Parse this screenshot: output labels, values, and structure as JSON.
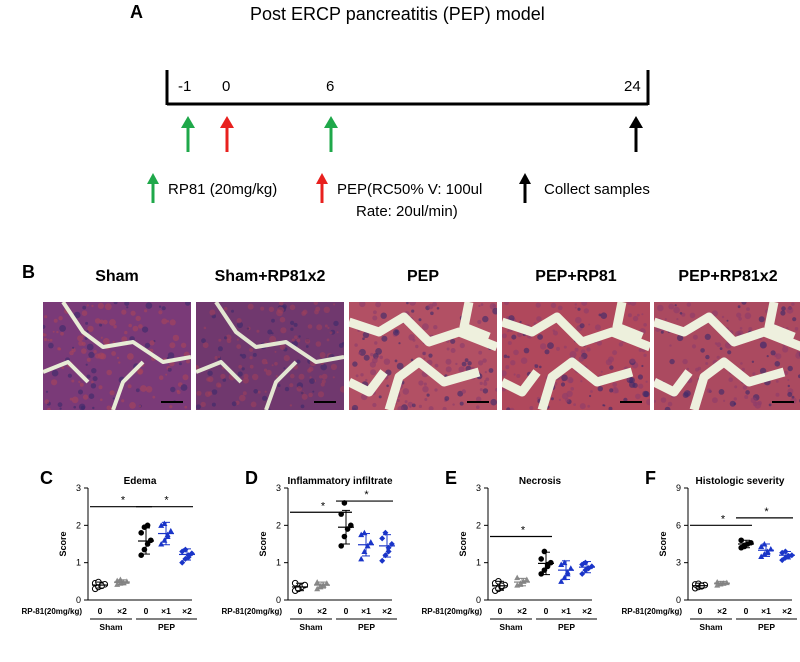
{
  "panel_a": {
    "letter": "A",
    "title": "Post ERCP pancreatitis (PEP) model",
    "ticks": [
      "-1",
      "0",
      "6",
      "24"
    ],
    "legend": {
      "rp81": "RP81 (20mg/kg)",
      "pep_line1": "PEP(RC50% V: 100ul",
      "pep_line2": "Rate: 20ul/min)",
      "collect": "Collect samples"
    },
    "colors": {
      "green": "#1fa84a",
      "red": "#e8201e",
      "black": "#000000"
    }
  },
  "panel_b": {
    "letter": "B",
    "images": [
      {
        "label": "Sham",
        "bg": "#7a3a78",
        "tint": "#a8445a",
        "space": "#e8ecd6"
      },
      {
        "label": "Sham+RP81x2",
        "bg": "#70386e",
        "tint": "#9c3f5c",
        "space": "#e3e6d2"
      },
      {
        "label": "PEP",
        "bg": "#b25064",
        "tint": "#8a3c6c",
        "space": "#eef0dd"
      },
      {
        "label": "PEP+RP81",
        "bg": "#b0485c",
        "tint": "#8e3d6a",
        "space": "#edf0dc"
      },
      {
        "label": "PEP+RP81x2",
        "bg": "#ab4a60",
        "tint": "#8d3c6a",
        "space": "#eef0de"
      }
    ]
  },
  "charts": [
    {
      "letter": "C",
      "title": "Edema",
      "ylabel": "Score",
      "yticks": [
        "0",
        "1",
        "2",
        "3"
      ],
      "ylim": [
        0,
        3
      ],
      "xlabel_left": "RP-81(20mg/kg)",
      "groups": [
        "Sham",
        "PEP"
      ],
      "x_labels": [
        "0",
        "×2",
        "0",
        "×1",
        "×2"
      ],
      "sig": "*",
      "chart_data": {
        "type": "scatter",
        "categories": [
          "Sham 0",
          "Sham ×2",
          "PEP 0",
          "PEP ×1",
          "PEP ×2"
        ],
        "means": [
          0.4,
          0.48,
          1.58,
          1.78,
          1.22
        ],
        "sd": [
          0.08,
          0.06,
          0.35,
          0.3,
          0.15
        ],
        "points": [
          [
            0.3,
            0.35,
            0.4,
            0.42,
            0.45,
            0.48,
            0.38
          ],
          [
            0.42,
            0.45,
            0.48,
            0.5,
            0.52,
            0.55,
            0.46
          ],
          [
            1.2,
            1.35,
            1.5,
            1.6,
            1.8,
            1.95,
            2.0
          ],
          [
            1.5,
            1.6,
            1.75,
            1.85,
            2.0,
            2.05,
            1.7
          ],
          [
            1.0,
            1.1,
            1.2,
            1.25,
            1.3,
            1.35,
            1.15
          ]
        ],
        "brackets": [
          {
            "from": 0,
            "to": 2,
            "level": 2.5,
            "label": "*"
          },
          {
            "from": 2,
            "to": 4,
            "level": 2.5,
            "label": "*"
          }
        ]
      }
    },
    {
      "letter": "D",
      "title": "Inflammatory infiltrate",
      "ylabel": "Score",
      "yticks": [
        "0",
        "1",
        "2",
        "3"
      ],
      "ylim": [
        0,
        3
      ],
      "xlabel_left": "RP-81(20mg/kg)",
      "groups": [
        "Sham",
        "PEP"
      ],
      "x_labels": [
        "0",
        "×2",
        "0",
        "×1",
        "×2"
      ],
      "sig": "*",
      "chart_data": {
        "type": "scatter",
        "categories": [
          "Sham 0",
          "Sham ×2",
          "PEP 0",
          "PEP ×1",
          "PEP ×2"
        ],
        "means": [
          0.35,
          0.4,
          1.95,
          1.48,
          1.45
        ],
        "sd": [
          0.1,
          0.08,
          0.45,
          0.3,
          0.3
        ],
        "points": [
          [
            0.25,
            0.3,
            0.35,
            0.4,
            0.45,
            0.3
          ],
          [
            0.3,
            0.35,
            0.4,
            0.45,
            0.48,
            0.38
          ],
          [
            1.45,
            1.7,
            1.9,
            2.0,
            2.3,
            2.6
          ],
          [
            1.1,
            1.3,
            1.45,
            1.55,
            1.75,
            1.8
          ],
          [
            1.05,
            1.2,
            1.4,
            1.5,
            1.65,
            1.8,
            1.3
          ]
        ],
        "brackets": [
          {
            "from": 0,
            "to": 2,
            "level": 2.35,
            "label": "*"
          },
          {
            "from": 2,
            "to": 4,
            "level": 2.65,
            "label": "*"
          }
        ]
      }
    },
    {
      "letter": "E",
      "title": "Necrosis",
      "ylabel": "Score",
      "yticks": [
        "0",
        "1",
        "2",
        "3"
      ],
      "ylim": [
        0,
        3
      ],
      "xlabel_left": "RP-81(20mg/kg)",
      "groups": [
        "Sham",
        "PEP"
      ],
      "x_labels": [
        "0",
        "×2",
        "0",
        "×1",
        "×2"
      ],
      "sig": "*",
      "chart_data": {
        "type": "scatter",
        "categories": [
          "Sham 0",
          "Sham ×2",
          "PEP 0",
          "PEP ×1",
          "PEP ×2"
        ],
        "means": [
          0.38,
          0.48,
          0.98,
          0.8,
          0.88
        ],
        "sd": [
          0.12,
          0.1,
          0.3,
          0.25,
          0.15
        ],
        "points": [
          [
            0.25,
            0.3,
            0.35,
            0.4,
            0.45,
            0.5,
            0.38
          ],
          [
            0.4,
            0.45,
            0.5,
            0.55,
            0.6,
            0.42
          ],
          [
            0.7,
            0.8,
            0.9,
            1.0,
            1.1,
            1.3,
            0.95
          ],
          [
            0.5,
            0.6,
            0.75,
            0.85,
            0.95,
            1.0,
            0.7
          ],
          [
            0.7,
            0.8,
            0.85,
            0.9,
            0.95,
            1.0,
            0.85
          ]
        ],
        "brackets": [
          {
            "from": 0,
            "to": 2,
            "level": 1.7,
            "label": "*"
          }
        ]
      }
    },
    {
      "letter": "F",
      "title": "Histologic severity",
      "ylabel": "Score",
      "yticks": [
        "0",
        "3",
        "6",
        "9"
      ],
      "ylim": [
        0,
        9
      ],
      "xlabel_left": "RP-81(20mg/kg)",
      "groups": [
        "Sham",
        "PEP"
      ],
      "x_labels": [
        "0",
        "×2",
        "0",
        "×1",
        "×2"
      ],
      "sig": "*",
      "chart_data": {
        "type": "scatter",
        "categories": [
          "Sham 0",
          "Sham ×2",
          "PEP 0",
          "PEP ×1",
          "PEP ×2"
        ],
        "means": [
          1.15,
          1.35,
          4.5,
          4.0,
          3.6
        ],
        "sd": [
          0.2,
          0.15,
          0.3,
          0.5,
          0.3
        ],
        "points": [
          [
            0.95,
            1.05,
            1.1,
            1.2,
            1.25,
            1.3,
            1.15
          ],
          [
            1.2,
            1.3,
            1.35,
            1.4,
            1.45,
            1.3
          ],
          [
            4.2,
            4.3,
            4.5,
            4.6,
            4.8,
            4.4
          ],
          [
            3.5,
            3.7,
            3.9,
            4.1,
            4.3,
            4.5,
            3.8
          ],
          [
            3.2,
            3.4,
            3.5,
            3.6,
            3.8,
            3.9,
            3.55
          ]
        ],
        "brackets": [
          {
            "from": 0,
            "to": 2,
            "level": 6.0,
            "label": "*"
          },
          {
            "from": 2,
            "to": 4,
            "level": 6.6,
            "label": "*"
          }
        ]
      }
    }
  ],
  "series_colors": [
    "#000000",
    "#808080",
    "#000000",
    "#1a35c8",
    "#1a35c8"
  ],
  "series_markers": [
    "circle-open",
    "triangle-gray",
    "circle-filled",
    "triangle-blue",
    "diamond-blue"
  ]
}
